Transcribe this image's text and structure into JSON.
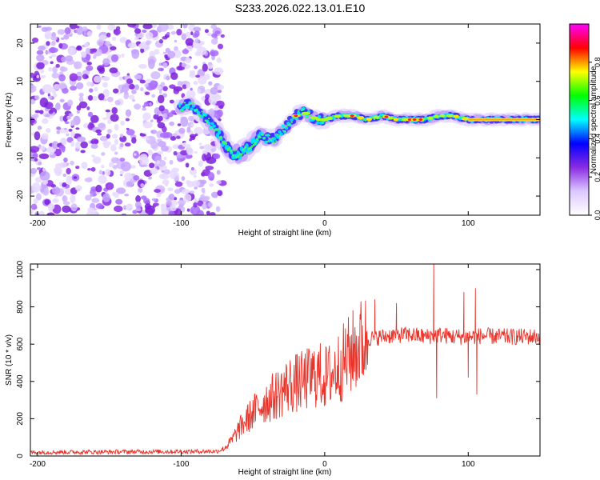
{
  "page": {
    "title": "S233.2026.022.13.01.E10"
  },
  "chart_data": [
    {
      "type": "heatmap",
      "title": "S233.2026.022.13.01.E10",
      "xlabel": "Height of straight line (km)",
      "ylabel": "Frequency (Hz)",
      "xlim": [
        -205,
        150
      ],
      "ylim": [
        -25,
        25
      ],
      "xticks": [
        -200,
        -100,
        0,
        100
      ],
      "yticks": [
        -20,
        -10,
        0,
        10,
        20
      ],
      "xtick_labels": [
        "-200",
        "-100",
        "0",
        "100"
      ],
      "ytick_labels": [
        "-20",
        "-10",
        "0",
        "10",
        "20"
      ],
      "noise_region_x": [
        -205,
        -77
      ],
      "ridge": {
        "x": [
          -100,
          -95,
          -90,
          -85,
          -80,
          -75,
          -70,
          -65,
          -60,
          -55,
          -50,
          -45,
          -40,
          -35,
          -30,
          -25,
          -20,
          -15,
          -10,
          -5,
          0,
          10,
          20,
          30,
          40,
          50,
          60,
          70,
          80,
          90,
          100,
          110,
          120,
          130,
          140,
          150
        ],
        "freq": [
          3,
          4,
          3,
          1,
          -1,
          -3,
          -6,
          -9,
          -9,
          -8,
          -6,
          -4,
          -5,
          -5,
          -3,
          -1,
          1,
          2,
          1,
          0,
          0,
          1,
          1,
          0,
          1,
          0,
          0,
          0,
          1,
          1,
          0,
          0,
          0,
          0,
          0,
          0
        ]
      },
      "colorbar": {
        "label": "Normalized spectral amplitude",
        "range": [
          0.0,
          1.0
        ],
        "ticks": [
          0.0,
          0.2,
          0.4,
          0.6,
          0.8
        ],
        "tick_labels": [
          "0.0",
          "0.2",
          "0.4",
          "0.6",
          "0.8"
        ],
        "colors": [
          "#ffffff",
          "#dcc8ff",
          "#8a2be2",
          "#0000ff",
          "#00ffff",
          "#00ff00",
          "#ffff00",
          "#ff0000",
          "#ff00ff"
        ]
      }
    },
    {
      "type": "line",
      "xlabel": "Height of straight line (km)",
      "ylabel": "SNR (10 * v/v)",
      "xlim": [
        -205,
        150
      ],
      "ylim": [
        0,
        1030
      ],
      "xticks": [
        -200,
        -100,
        0,
        100
      ],
      "yticks": [
        0,
        200,
        400,
        600,
        800,
        1000
      ],
      "xtick_labels": [
        "-200",
        "-100",
        "0",
        "100"
      ],
      "ytick_labels": [
        "0",
        "200",
        "400",
        "600",
        "800",
        "1000"
      ],
      "series": [
        {
          "name": "SNR",
          "color": "#e8342a",
          "trend_x": [
            -205,
            -75,
            -70,
            -65,
            -60,
            -55,
            -50,
            -45,
            -40,
            -35,
            -30,
            -25,
            -20,
            -15,
            -10,
            -5,
            0,
            5,
            10,
            15,
            20,
            25,
            30,
            40,
            50,
            60,
            70,
            80,
            90,
            100,
            110,
            120,
            130,
            140,
            150
          ],
          "trend_y": [
            20,
            25,
            40,
            80,
            140,
            190,
            230,
            270,
            300,
            320,
            350,
            380,
            390,
            400,
            420,
            440,
            420,
            440,
            480,
            520,
            560,
            600,
            630,
            640,
            650,
            650,
            640,
            650,
            640,
            640,
            645,
            640,
            640,
            640,
            640
          ],
          "spikes": [
            {
              "x": 76,
              "y": 1030
            },
            {
              "x": 78,
              "y": 310
            },
            {
              "x": 97,
              "y": 880
            },
            {
              "x": 100,
              "y": 420
            },
            {
              "x": 105,
              "y": 900
            },
            {
              "x": 106,
              "y": 330
            },
            {
              "x": 50,
              "y": 820
            },
            {
              "x": 35,
              "y": 840
            }
          ]
        }
      ]
    }
  ]
}
